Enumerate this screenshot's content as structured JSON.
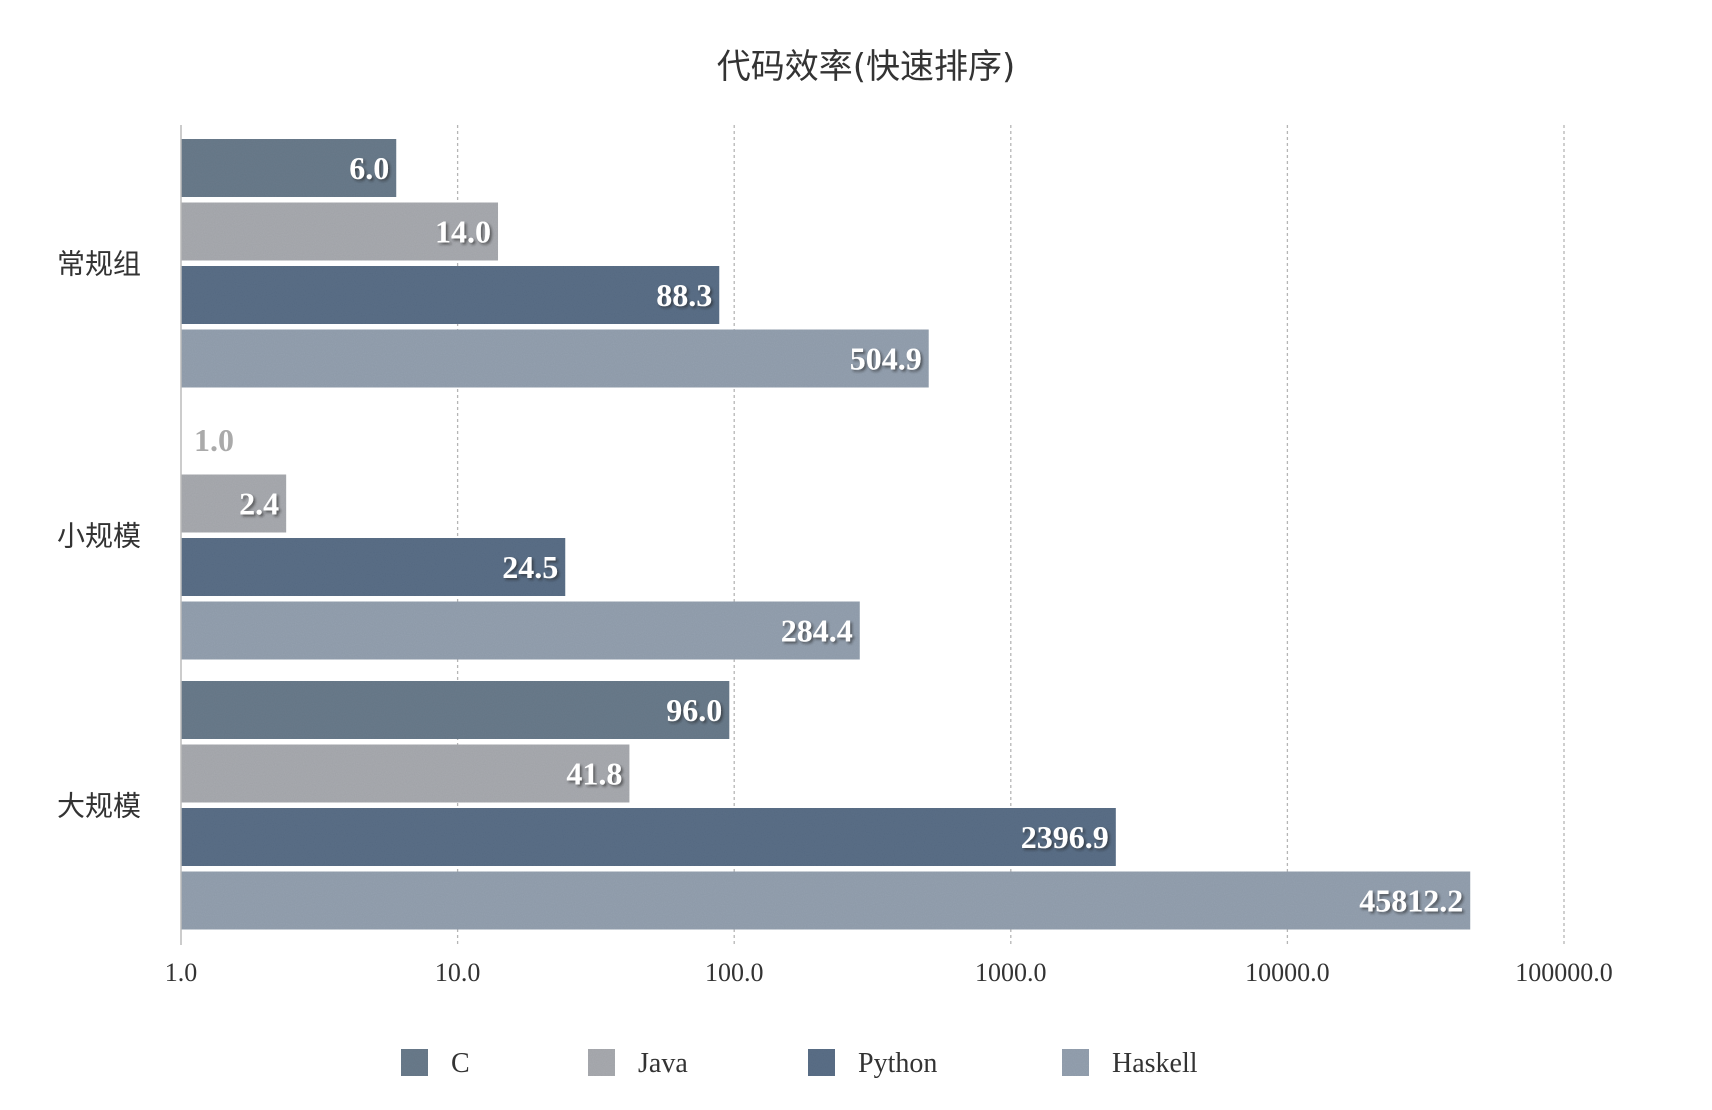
{
  "chart_data": {
    "type": "bar",
    "orientation": "horizontal",
    "title": "代码效率(快速排序)",
    "categories": [
      "常规组",
      "小规模",
      "大规模"
    ],
    "series": [
      {
        "name": "C",
        "color": "#6b7b8c",
        "values": [
          6.0,
          1.0,
          96.0
        ]
      },
      {
        "name": "Java",
        "color": "#a9abb0",
        "values": [
          14.0,
          2.4,
          41.8
        ]
      },
      {
        "name": "Python",
        "color": "#5b6f88",
        "values": [
          88.3,
          24.5,
          2396.9
        ]
      },
      {
        "name": "Haskell",
        "color": "#94a1b0",
        "values": [
          504.9,
          284.4,
          45812.2
        ]
      }
    ],
    "data_labels": [
      [
        "6.0",
        "1.0",
        "96.0"
      ],
      [
        "14.0",
        "2.4",
        "41.8"
      ],
      [
        "88.3",
        "24.5",
        "2396.9"
      ],
      [
        "504.9",
        "284.4",
        "45812.2"
      ]
    ],
    "x_scale": "log",
    "xlim": [
      1,
      100000
    ],
    "x_ticks": [
      "1.0",
      "10.0",
      "100.0",
      "1000.0",
      "10000.0",
      "100000.0"
    ],
    "x_tick_values": [
      1,
      10,
      100,
      1000,
      10000,
      100000
    ],
    "grid": "vertical dotted",
    "legend_position": "bottom"
  }
}
